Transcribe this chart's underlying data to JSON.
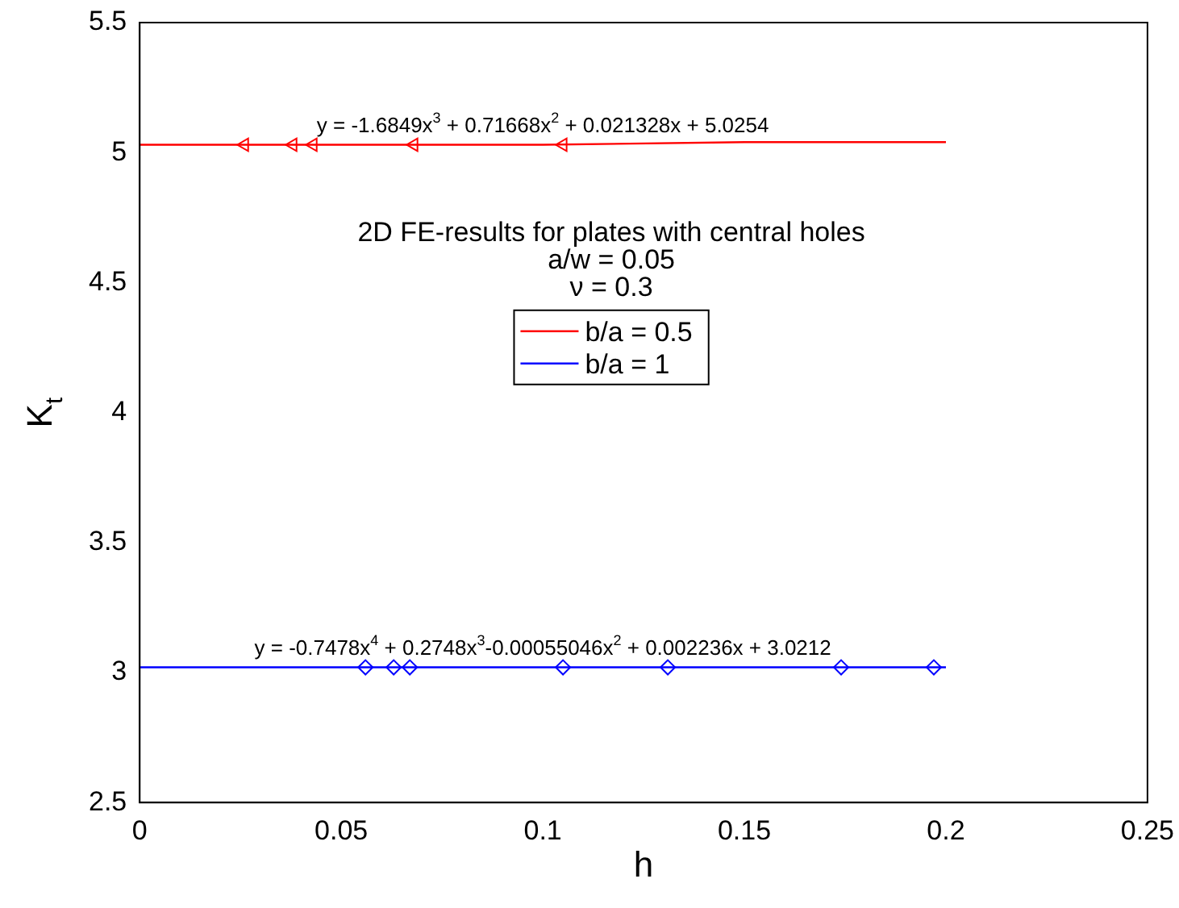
{
  "chart_data": {
    "type": "line",
    "title": "2D FE-results for plates with central holes",
    "xlabel": "h",
    "ylabel": "K$_{t}$",
    "xlim": [
      0,
      0.25
    ],
    "xticks": [
      0,
      0.05,
      0.1,
      0.15,
      0.2,
      0.25
    ],
    "ylim": [
      2.5,
      5.5
    ],
    "yticks": [
      2.5,
      3,
      3.5,
      4,
      4.5,
      5,
      5.5
    ],
    "grid": false,
    "legend": "center",
    "annotations": [
      "a/w = 0.05",
      "ν = 0.3",
      {
        "text": "y = -1.6849x$^{3}$ + 0.71668x$^{2}$ + 0.021328x + 5.0254",
        "x": 0.1,
        "y": 5.03
      },
      {
        "text": "y = -0.7478x$^{4}$ + 0.2748x$^{3}$-0.00055046x$^{2}$ + 0.002236x + 3.0212",
        "x": 0.1,
        "y": 3.02
      }
    ],
    "series": [
      {
        "name": "b/a = 0.5",
        "type": "line",
        "color": "#ff0000",
        "marker": "none",
        "x": [
          0,
          0.05,
          0.1,
          0.15,
          0.2
        ],
        "values": [
          5.03,
          5.03,
          5.03,
          5.04,
          5.04
        ]
      },
      {
        "type": "scatter",
        "color": "#ff0000",
        "marker": "triangle",
        "x": [
          0.026,
          0.038,
          0.043,
          0.068,
          0.105
        ],
        "values": [
          5.03,
          5.03,
          5.03,
          5.03,
          5.03
        ]
      },
      {
        "name": "b/a = 1",
        "type": "line",
        "color": "#0000ff",
        "marker": "none",
        "x": [
          0,
          0.05,
          0.1,
          0.15,
          0.2
        ],
        "values": [
          3.02,
          3.02,
          3.02,
          3.02,
          3.02
        ]
      },
      {
        "type": "scatter",
        "color": "#0000ff",
        "marker": "diamond",
        "x": [
          0.056,
          0.063,
          0.067,
          0.105,
          0.131,
          0.174,
          0.197
        ],
        "values": [
          3.02,
          3.02,
          3.02,
          3.02,
          3.02,
          3.02,
          3.02
        ]
      }
    ]
  }
}
